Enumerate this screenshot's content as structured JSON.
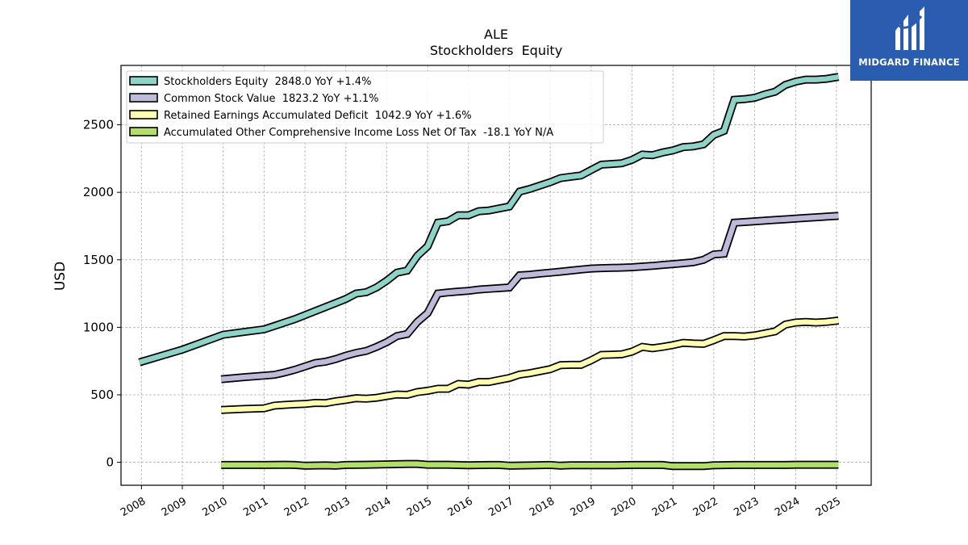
{
  "brand": {
    "name": "MIDGARD FINANCE",
    "bg_color": "#2a5db0",
    "icon": "midgard-m-logo-icon"
  },
  "chart_data": {
    "type": "line",
    "title": "ALE",
    "subtitle": "Stockholders  Equity",
    "ylabel": "USD",
    "xlabel": "",
    "xlim": [
      2007.5,
      2025.85
    ],
    "ylim": [
      -170,
      2940
    ],
    "yticks": [
      0,
      500,
      1000,
      1500,
      2000,
      2500
    ],
    "xticks": [
      "2008",
      "2009",
      "2010",
      "2011",
      "2012",
      "2013",
      "2014",
      "2015",
      "2016",
      "2017",
      "2018",
      "2019",
      "2020",
      "2021",
      "2022",
      "2023",
      "2024",
      "2025"
    ],
    "grid": true,
    "legend_position": "top-left",
    "series": [
      {
        "name": "Stockholders Equity",
        "legend": "Stockholders Equity  2848.0 YoY +1.4%",
        "color": "#8ed3c7",
        "points": [
          [
            2007.95,
            740
          ],
          [
            2008.5,
            790
          ],
          [
            2009.0,
            835
          ],
          [
            2009.5,
            890
          ],
          [
            2010.0,
            945
          ],
          [
            2010.5,
            965
          ],
          [
            2011.0,
            985
          ],
          [
            2011.3,
            1015
          ],
          [
            2011.5,
            1035
          ],
          [
            2011.75,
            1060
          ],
          [
            2012.0,
            1090
          ],
          [
            2012.25,
            1120
          ],
          [
            2012.5,
            1150
          ],
          [
            2012.75,
            1180
          ],
          [
            2013.0,
            1210
          ],
          [
            2013.25,
            1250
          ],
          [
            2013.5,
            1260
          ],
          [
            2013.75,
            1295
          ],
          [
            2014.0,
            1345
          ],
          [
            2014.25,
            1405
          ],
          [
            2014.5,
            1420
          ],
          [
            2014.75,
            1530
          ],
          [
            2015.0,
            1600
          ],
          [
            2015.25,
            1775
          ],
          [
            2015.5,
            1785
          ],
          [
            2015.75,
            1830
          ],
          [
            2016.0,
            1830
          ],
          [
            2016.25,
            1860
          ],
          [
            2016.5,
            1865
          ],
          [
            2016.75,
            1880
          ],
          [
            2017.0,
            1895
          ],
          [
            2017.25,
            2005
          ],
          [
            2017.5,
            2025
          ],
          [
            2017.75,
            2050
          ],
          [
            2018.0,
            2075
          ],
          [
            2018.25,
            2105
          ],
          [
            2018.5,
            2115
          ],
          [
            2018.75,
            2125
          ],
          [
            2019.0,
            2165
          ],
          [
            2019.25,
            2205
          ],
          [
            2019.5,
            2210
          ],
          [
            2019.75,
            2215
          ],
          [
            2020.0,
            2240
          ],
          [
            2020.25,
            2280
          ],
          [
            2020.5,
            2275
          ],
          [
            2020.75,
            2295
          ],
          [
            2021.0,
            2310
          ],
          [
            2021.25,
            2335
          ],
          [
            2021.5,
            2340
          ],
          [
            2021.75,
            2355
          ],
          [
            2022.0,
            2425
          ],
          [
            2022.25,
            2455
          ],
          [
            2022.5,
            2685
          ],
          [
            2022.75,
            2690
          ],
          [
            2023.0,
            2700
          ],
          [
            2023.25,
            2725
          ],
          [
            2023.5,
            2745
          ],
          [
            2023.75,
            2795
          ],
          [
            2024.0,
            2820
          ],
          [
            2024.25,
            2835
          ],
          [
            2024.5,
            2835
          ],
          [
            2024.75,
            2840
          ],
          [
            2025.05,
            2855
          ]
        ]
      },
      {
        "name": "Common Stock Value",
        "legend": "Common Stock Value  1823.2 YoY +1.1%",
        "color": "#bebada",
        "points": [
          [
            2009.95,
            615
          ],
          [
            2010.5,
            630
          ],
          [
            2011.0,
            642
          ],
          [
            2011.25,
            648
          ],
          [
            2011.5,
            665
          ],
          [
            2011.75,
            685
          ],
          [
            2012.0,
            710
          ],
          [
            2012.25,
            735
          ],
          [
            2012.5,
            745
          ],
          [
            2012.75,
            765
          ],
          [
            2013.0,
            790
          ],
          [
            2013.25,
            810
          ],
          [
            2013.5,
            825
          ],
          [
            2013.75,
            855
          ],
          [
            2014.0,
            890
          ],
          [
            2014.25,
            935
          ],
          [
            2014.5,
            950
          ],
          [
            2014.75,
            1040
          ],
          [
            2015.0,
            1105
          ],
          [
            2015.25,
            1250
          ],
          [
            2015.5,
            1258
          ],
          [
            2015.75,
            1265
          ],
          [
            2016.0,
            1270
          ],
          [
            2016.25,
            1280
          ],
          [
            2016.5,
            1285
          ],
          [
            2016.75,
            1290
          ],
          [
            2017.0,
            1295
          ],
          [
            2017.25,
            1385
          ],
          [
            2017.5,
            1390
          ],
          [
            2017.75,
            1398
          ],
          [
            2018.0,
            1405
          ],
          [
            2018.25,
            1412
          ],
          [
            2018.5,
            1420
          ],
          [
            2018.75,
            1428
          ],
          [
            2019.0,
            1435
          ],
          [
            2019.25,
            1438
          ],
          [
            2019.5,
            1440
          ],
          [
            2019.75,
            1442
          ],
          [
            2020.0,
            1445
          ],
          [
            2020.25,
            1450
          ],
          [
            2020.5,
            1455
          ],
          [
            2020.75,
            1462
          ],
          [
            2021.0,
            1468
          ],
          [
            2021.25,
            1475
          ],
          [
            2021.5,
            1482
          ],
          [
            2021.75,
            1500
          ],
          [
            2022.0,
            1540
          ],
          [
            2022.25,
            1545
          ],
          [
            2022.5,
            1775
          ],
          [
            2022.75,
            1780
          ],
          [
            2023.0,
            1785
          ],
          [
            2023.25,
            1790
          ],
          [
            2023.5,
            1795
          ],
          [
            2023.75,
            1800
          ],
          [
            2024.0,
            1805
          ],
          [
            2024.25,
            1810
          ],
          [
            2024.5,
            1815
          ],
          [
            2024.75,
            1820
          ],
          [
            2025.05,
            1825
          ]
        ]
      },
      {
        "name": "Retained Earnings Accumulated Deficit",
        "legend": "Retained Earnings Accumulated Deficit  1042.9 YoY +1.6%",
        "color": "#ffffb3",
        "points": [
          [
            2009.95,
            388
          ],
          [
            2010.5,
            395
          ],
          [
            2011.0,
            400
          ],
          [
            2011.25,
            420
          ],
          [
            2011.5,
            425
          ],
          [
            2011.75,
            430
          ],
          [
            2012.0,
            432
          ],
          [
            2012.25,
            440
          ],
          [
            2012.5,
            438
          ],
          [
            2012.75,
            452
          ],
          [
            2013.0,
            462
          ],
          [
            2013.25,
            475
          ],
          [
            2013.5,
            472
          ],
          [
            2013.75,
            478
          ],
          [
            2014.0,
            490
          ],
          [
            2014.25,
            502
          ],
          [
            2014.5,
            500
          ],
          [
            2014.75,
            520
          ],
          [
            2015.0,
            530
          ],
          [
            2015.25,
            545
          ],
          [
            2015.5,
            545
          ],
          [
            2015.75,
            580
          ],
          [
            2016.0,
            575
          ],
          [
            2016.25,
            595
          ],
          [
            2016.5,
            595
          ],
          [
            2016.75,
            610
          ],
          [
            2017.0,
            625
          ],
          [
            2017.25,
            650
          ],
          [
            2017.5,
            660
          ],
          [
            2017.75,
            675
          ],
          [
            2018.0,
            690
          ],
          [
            2018.25,
            720
          ],
          [
            2018.5,
            722
          ],
          [
            2018.75,
            722
          ],
          [
            2019.0,
            755
          ],
          [
            2019.25,
            795
          ],
          [
            2019.5,
            797
          ],
          [
            2019.75,
            800
          ],
          [
            2020.0,
            820
          ],
          [
            2020.25,
            855
          ],
          [
            2020.5,
            845
          ],
          [
            2020.75,
            855
          ],
          [
            2021.0,
            868
          ],
          [
            2021.25,
            885
          ],
          [
            2021.5,
            880
          ],
          [
            2021.75,
            878
          ],
          [
            2022.0,
            905
          ],
          [
            2022.25,
            935
          ],
          [
            2022.5,
            935
          ],
          [
            2022.75,
            932
          ],
          [
            2023.0,
            940
          ],
          [
            2023.25,
            955
          ],
          [
            2023.5,
            970
          ],
          [
            2023.75,
            1020
          ],
          [
            2024.0,
            1035
          ],
          [
            2024.25,
            1040
          ],
          [
            2024.5,
            1035
          ],
          [
            2024.75,
            1040
          ],
          [
            2025.05,
            1050
          ]
        ]
      },
      {
        "name": "Accumulated Other Comprehensive Income Loss Net Of Tax",
        "legend": "Accumulated Other Comprehensive Income Loss Net Of Tax  -18.1 YoY N/A",
        "color": "#b3de69",
        "points": [
          [
            2009.95,
            -20
          ],
          [
            2010.5,
            -20
          ],
          [
            2011.0,
            -20
          ],
          [
            2011.5,
            -18
          ],
          [
            2011.75,
            -20
          ],
          [
            2012.0,
            -25
          ],
          [
            2012.5,
            -23
          ],
          [
            2012.75,
            -25
          ],
          [
            2013.0,
            -20
          ],
          [
            2013.5,
            -18
          ],
          [
            2014.0,
            -15
          ],
          [
            2014.5,
            -12
          ],
          [
            2014.75,
            -12
          ],
          [
            2015.0,
            -18
          ],
          [
            2015.5,
            -18
          ],
          [
            2016.0,
            -22
          ],
          [
            2016.5,
            -20
          ],
          [
            2016.75,
            -20
          ],
          [
            2017.0,
            -25
          ],
          [
            2017.5,
            -23
          ],
          [
            2018.0,
            -20
          ],
          [
            2018.25,
            -25
          ],
          [
            2018.5,
            -22
          ],
          [
            2019.0,
            -22
          ],
          [
            2019.5,
            -22
          ],
          [
            2020.0,
            -20
          ],
          [
            2020.5,
            -20
          ],
          [
            2020.75,
            -20
          ],
          [
            2021.0,
            -28
          ],
          [
            2021.5,
            -28
          ],
          [
            2021.75,
            -28
          ],
          [
            2022.0,
            -22
          ],
          [
            2022.5,
            -20
          ],
          [
            2023.0,
            -20
          ],
          [
            2023.5,
            -20
          ],
          [
            2023.75,
            -20
          ],
          [
            2024.0,
            -18
          ],
          [
            2024.5,
            -18
          ],
          [
            2024.75,
            -18
          ],
          [
            2025.05,
            -18
          ]
        ]
      }
    ]
  }
}
